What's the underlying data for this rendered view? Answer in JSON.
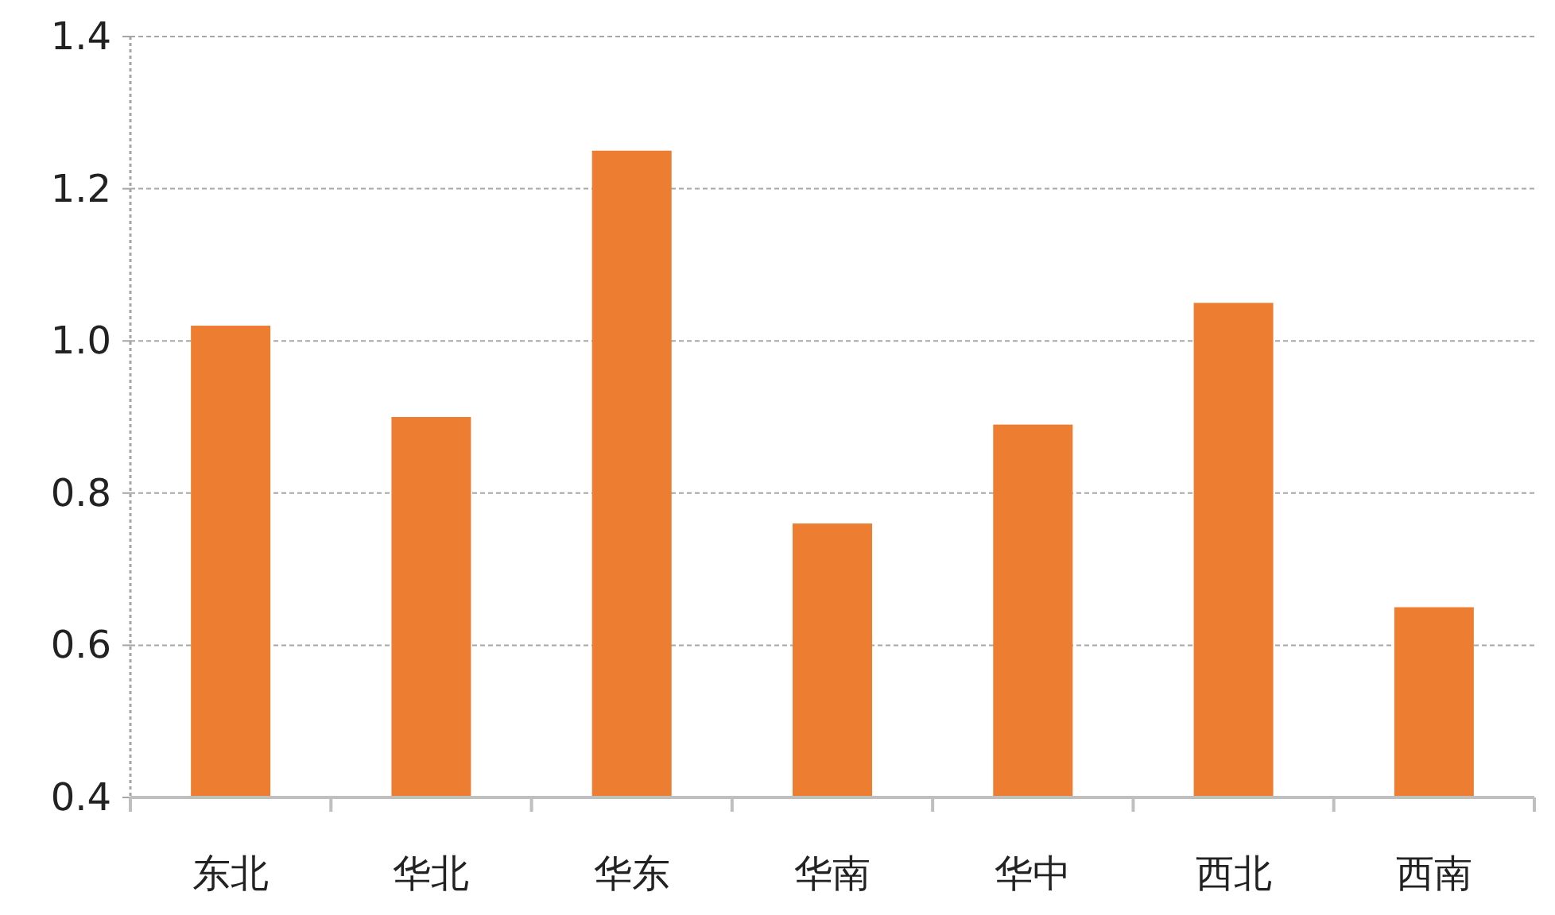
{
  "chart_data": {
    "type": "bar",
    "categories": [
      "东北",
      "华北",
      "华东",
      "华南",
      "华中",
      "西北",
      "西南"
    ],
    "values": [
      1.02,
      0.9,
      1.25,
      0.76,
      0.89,
      1.05,
      0.65
    ],
    "color": "#ed7d31",
    "ylim": [
      0.4,
      1.4
    ],
    "yticks": [
      {
        "value": 0.4,
        "label": "0.4"
      },
      {
        "value": 0.6,
        "label": "0.6"
      },
      {
        "value": 0.8,
        "label": "0.8"
      },
      {
        "value": 1.0,
        "label": "1.0"
      },
      {
        "value": 1.2,
        "label": "1.2"
      },
      {
        "value": 1.4,
        "label": "1.4"
      }
    ],
    "grid": "y"
  }
}
